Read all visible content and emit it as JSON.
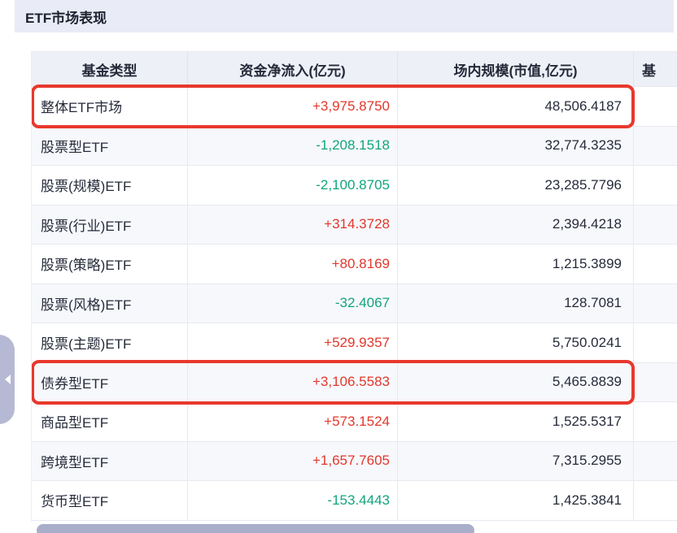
{
  "title": "ETF市场表现",
  "colors": {
    "positive": "#e1382c",
    "negative": "#12a57c",
    "highlight_ring": "#e8382d",
    "band_bg": "#e9ebf6",
    "header_bg": "#eef0f8",
    "stripe_bg": "#f7f8fc",
    "scrollbar_thumb": "#a9aecb"
  },
  "table": {
    "columns": [
      "基金类型",
      "资金净流入(亿元)",
      "场内规模(市值,亿元)",
      "基"
    ],
    "rows": [
      {
        "fund_type": "整体ETF市场",
        "net_inflow": "+3,975.8750",
        "inflow_sign": "positive",
        "market_value": "48,506.4187",
        "highlighted": true
      },
      {
        "fund_type": "股票型ETF",
        "net_inflow": "-1,208.1518",
        "inflow_sign": "negative",
        "market_value": "32,774.3235",
        "highlighted": false
      },
      {
        "fund_type": "股票(规模)ETF",
        "net_inflow": "-2,100.8705",
        "inflow_sign": "negative",
        "market_value": "23,285.7796",
        "highlighted": false
      },
      {
        "fund_type": "股票(行业)ETF",
        "net_inflow": "+314.3728",
        "inflow_sign": "positive",
        "market_value": "2,394.4218",
        "highlighted": false
      },
      {
        "fund_type": "股票(策略)ETF",
        "net_inflow": "+80.8169",
        "inflow_sign": "positive",
        "market_value": "1,215.3899",
        "highlighted": false
      },
      {
        "fund_type": "股票(风格)ETF",
        "net_inflow": "-32.4067",
        "inflow_sign": "negative",
        "market_value": "128.7081",
        "highlighted": false
      },
      {
        "fund_type": "股票(主题)ETF",
        "net_inflow": "+529.9357",
        "inflow_sign": "positive",
        "market_value": "5,750.0241",
        "highlighted": false
      },
      {
        "fund_type": "债券型ETF",
        "net_inflow": "+3,106.5583",
        "inflow_sign": "positive",
        "market_value": "5,465.8839",
        "highlighted": true
      },
      {
        "fund_type": "商品型ETF",
        "net_inflow": "+573.1524",
        "inflow_sign": "positive",
        "market_value": "1,525.5317",
        "highlighted": false
      },
      {
        "fund_type": "跨境型ETF",
        "net_inflow": "+1,657.7605",
        "inflow_sign": "positive",
        "market_value": "7,315.2955",
        "highlighted": false
      },
      {
        "fund_type": "货币型ETF",
        "net_inflow": "-153.4443",
        "inflow_sign": "negative",
        "market_value": "1,425.3841",
        "highlighted": false
      }
    ]
  },
  "scrollbar": {
    "orientation": "horizontal"
  },
  "drawer_handle": {
    "icon": "chevron-left"
  }
}
